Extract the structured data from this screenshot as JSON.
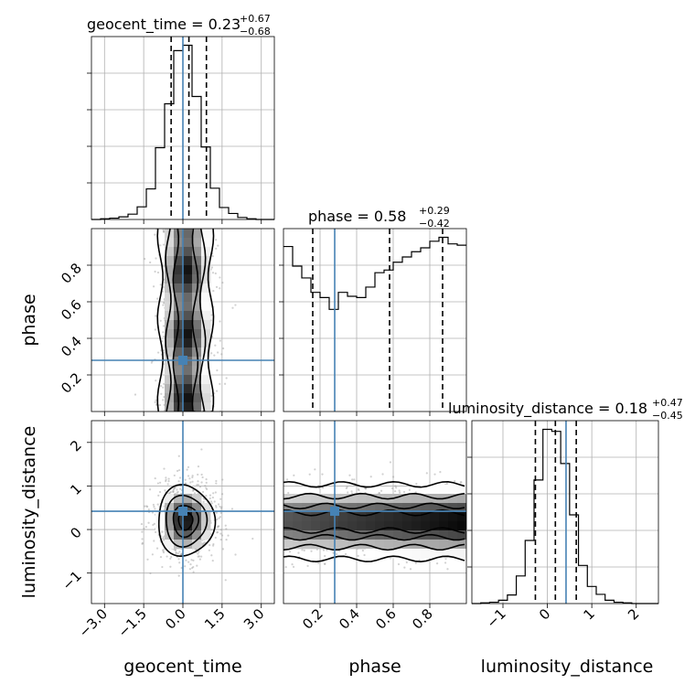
{
  "chart_data": {
    "type": "corner",
    "parameters": [
      "geocent_time",
      "phase",
      "luminosity_distance"
    ],
    "truths": {
      "geocent_time": 0.0,
      "phase": 0.28,
      "luminosity_distance": 0.42
    },
    "colors": {
      "truth": "#4682b4",
      "hist": "#000000",
      "density": "#000000",
      "samples": "#9a9a9a"
    },
    "titles": {
      "geocent_time": {
        "prefix": "geocent_time = 0.23",
        "plus": "+0.67",
        "minus": "−0.68"
      },
      "phase": {
        "prefix": "phase = 0.58",
        "plus": "+0.29",
        "minus": "−0.42"
      },
      "luminosity_distance": {
        "prefix": "luminosity_distance = 0.18",
        "plus": "+0.47",
        "minus": "−0.45"
      }
    },
    "quantiles": {
      "geocent_time": [
        -0.45,
        0.23,
        0.9
      ],
      "phase": [
        0.16,
        0.58,
        0.87
      ],
      "luminosity_distance": [
        -0.27,
        0.18,
        0.65
      ]
    },
    "axes": {
      "geocent_time": {
        "range": [
          -3.5,
          3.5
        ],
        "ticks": [
          -3.0,
          -1.5,
          0.0,
          1.5,
          3.0
        ],
        "ticklabels": [
          "−3.0",
          "−1.5",
          "0.0",
          "1.5",
          "3.0"
        ]
      },
      "phase": {
        "range": [
          0.0,
          1.0
        ],
        "ticks": [
          0.2,
          0.4,
          0.6,
          0.8
        ],
        "ticklabels": [
          "0.2",
          "0.4",
          "0.6",
          "0.8"
        ]
      },
      "luminosity_distance": {
        "range": [
          -1.7,
          2.5
        ],
        "ticks": [
          -1,
          0,
          1,
          2
        ],
        "ticklabels": [
          "−1",
          "0",
          "1",
          "2"
        ]
      }
    },
    "histograms": {
      "geocent_time": {
        "edges": [
          -3.5,
          -3.15,
          -2.8,
          -2.45,
          -2.1,
          -1.75,
          -1.4,
          -1.05,
          -0.7,
          -0.35,
          0.0,
          0.35,
          0.7,
          1.05,
          1.4,
          1.75,
          2.1,
          2.45,
          2.8,
          3.15,
          3.5
        ],
        "counts": [
          0,
          1,
          2,
          4,
          8,
          19,
          46,
          108,
          174,
          254,
          262,
          185,
          109,
          47,
          18,
          9,
          3,
          1,
          0,
          0
        ]
      },
      "phase": {
        "edges": [
          0.0,
          0.05,
          0.1,
          0.15,
          0.2,
          0.25,
          0.3,
          0.35,
          0.4,
          0.45,
          0.5,
          0.55,
          0.6,
          0.65,
          0.7,
          0.75,
          0.8,
          0.85,
          0.9,
          0.95,
          1.0
        ],
        "counts": [
          126,
          111,
          102,
          91,
          87,
          78,
          91,
          88,
          87,
          95,
          106,
          108,
          114,
          118,
          122,
          125,
          130,
          133,
          128,
          127
        ]
      },
      "luminosity_distance": {
        "edges": [
          -1.7,
          -1.5,
          -1.3,
          -1.1,
          -0.9,
          -0.7,
          -0.5,
          -0.3,
          -0.1,
          0.1,
          0.3,
          0.5,
          0.7,
          0.9,
          1.1,
          1.3,
          1.5,
          1.7,
          1.9,
          2.1,
          2.3,
          2.5
        ],
        "counts": [
          0,
          1,
          2,
          5,
          13,
          42,
          96,
          188,
          265,
          262,
          213,
          135,
          58,
          26,
          14,
          5,
          2,
          1,
          0,
          0,
          0
        ]
      }
    },
    "density_2d": {
      "geocent_time_vs_phase": {
        "x_center": 0.1,
        "x_sigma": 0.55,
        "levels": 3
      },
      "geocent_time_vs_luminosity_distance": {
        "center": [
          0.1,
          0.2
        ],
        "sigma": [
          0.6,
          0.45
        ],
        "levels": 3
      },
      "phase_vs_luminosity_distance": {
        "y_center": 0.18,
        "y_sigma": 0.45,
        "levels": 3
      }
    },
    "axis_labels": {
      "x": [
        "geocent_time",
        "phase",
        "luminosity_distance"
      ],
      "y": [
        "phase",
        "luminosity_distance"
      ]
    },
    "grid": true
  }
}
